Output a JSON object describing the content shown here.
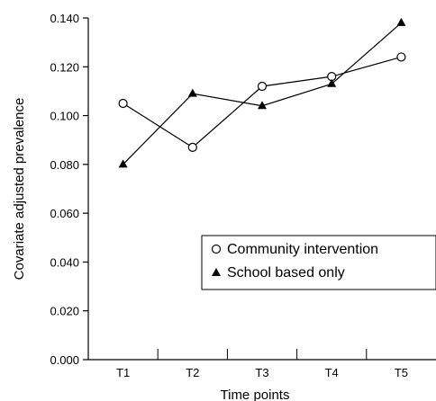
{
  "chart_data": {
    "type": "line",
    "title": "",
    "xlabel": "Time points",
    "ylabel": "Covariate adjusted prevalence",
    "categories": [
      "T1",
      "T2",
      "T3",
      "T4",
      "T5"
    ],
    "yticks": [
      "0.000",
      "0.020",
      "0.040",
      "0.060",
      "0.080",
      "0.100",
      "0.120",
      "0.140"
    ],
    "ylim": [
      0,
      0.14
    ],
    "grid": false,
    "legend_position": "lower-right",
    "series": [
      {
        "name": "Community intervention",
        "marker": "open-circle",
        "values": [
          0.105,
          0.087,
          0.112,
          0.116,
          0.124
        ]
      },
      {
        "name": "School based only",
        "marker": "filled-triangle",
        "values": [
          0.08,
          0.109,
          0.104,
          0.113,
          0.138
        ]
      }
    ]
  },
  "colors": {
    "ink": "#000000",
    "background": "#ffffff"
  }
}
